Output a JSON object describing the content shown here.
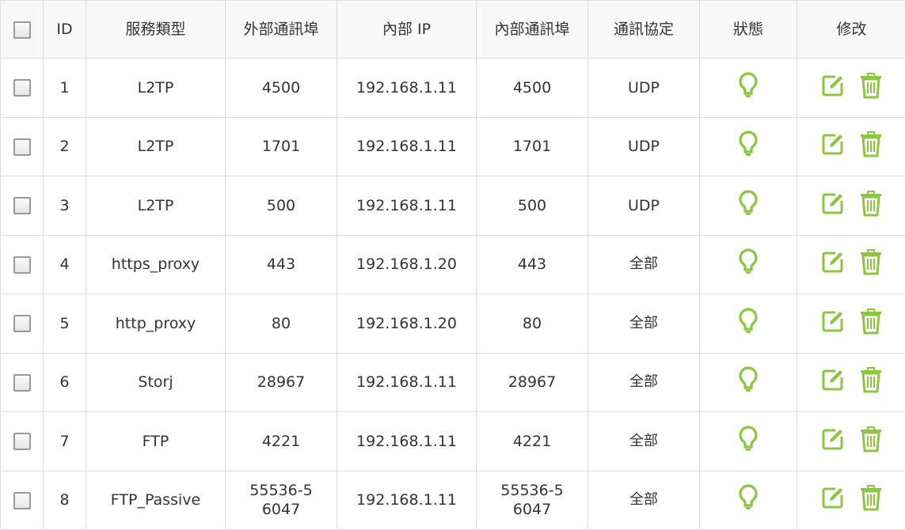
{
  "headers": [
    "ID",
    "服務類型",
    "外部通訊埠",
    "內部 IP",
    "內部通訊埠",
    "通訊協定",
    "狀態",
    "修改"
  ],
  "accent": "#8cc63f",
  "rows": [
    {
      "id": "1",
      "service": "L2TP",
      "ext": "4500",
      "ip": "192.168.1.11",
      "int": "4500",
      "proto": "UDP",
      "status": "enabled"
    },
    {
      "id": "2",
      "service": "L2TP",
      "ext": "1701",
      "ip": "192.168.1.11",
      "int": "1701",
      "proto": "UDP",
      "status": "enabled"
    },
    {
      "id": "3",
      "service": "L2TP",
      "ext": "500",
      "ip": "192.168.1.11",
      "int": "500",
      "proto": "UDP",
      "status": "enabled"
    },
    {
      "id": "4",
      "service": "https_proxy",
      "ext": "443",
      "ip": "192.168.1.20",
      "int": "443",
      "proto": "全部",
      "status": "enabled"
    },
    {
      "id": "5",
      "service": "http_proxy",
      "ext": "80",
      "ip": "192.168.1.20",
      "int": "80",
      "proto": "全部",
      "status": "enabled"
    },
    {
      "id": "6",
      "service": "Storj",
      "ext": "28967",
      "ip": "192.168.1.11",
      "int": "28967",
      "proto": "全部",
      "status": "enabled"
    },
    {
      "id": "7",
      "service": "FTP",
      "ext": "4221",
      "ip": "192.168.1.11",
      "int": "4221",
      "proto": "全部",
      "status": "enabled"
    },
    {
      "id": "8",
      "service": "FTP_Passive",
      "ext": "55536-56047",
      "ip": "192.168.1.11",
      "int": "55536-56047",
      "proto": "全部",
      "status": "enabled"
    }
  ]
}
